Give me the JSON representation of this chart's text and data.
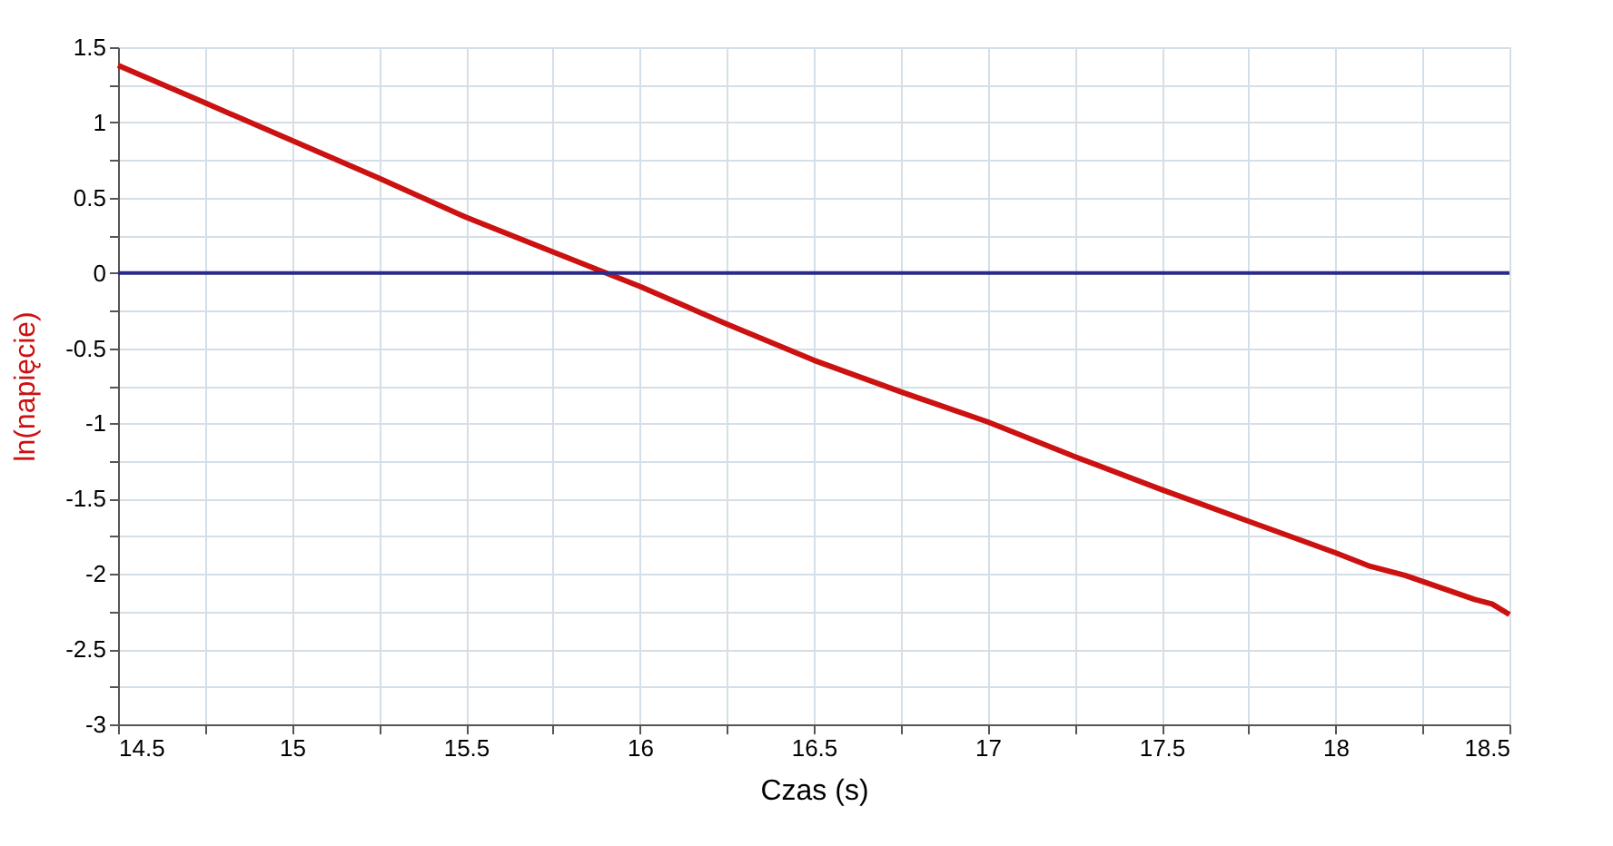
{
  "chart_data": {
    "type": "line",
    "xlabel": "Czas (s)",
    "ylabel": "ln(napięcie)",
    "x": [
      14.5,
      14.75,
      15,
      15.25,
      15.5,
      15.75,
      16,
      16.25,
      16.5,
      16.75,
      17,
      17.25,
      17.5,
      17.75,
      18,
      18.1,
      18.2,
      18.3,
      18.4,
      18.45,
      18.5
    ],
    "series": [
      {
        "color": "#cc1111",
        "values": [
          1.38,
          1.13,
          0.88,
          0.63,
          0.37,
          0.14,
          -0.09,
          -0.34,
          -0.58,
          -0.79,
          -0.99,
          -1.22,
          -1.44,
          -1.65,
          -1.86,
          -1.95,
          -2.01,
          -2.09,
          -2.17,
          -2.2,
          -2.27
        ]
      }
    ],
    "xlim": [
      14.5,
      18.5
    ],
    "ylim": [
      -3,
      1.5
    ],
    "xticks": [
      14.5,
      {
        "value": 14.75,
        "label": null
      },
      15,
      {
        "value": 15.25,
        "label": null
      },
      15.5,
      {
        "value": 15.75,
        "label": null
      },
      16,
      {
        "value": 16.25,
        "label": null
      },
      16.5,
      {
        "value": 16.75,
        "label": null
      },
      17,
      {
        "value": 17.25,
        "label": null
      },
      17.5,
      {
        "value": 17.75,
        "label": null
      },
      18,
      {
        "value": 18.25,
        "label": null
      },
      18.5
    ],
    "yticks": [
      -3,
      {
        "value": -2.75,
        "label": null
      },
      -2.5,
      {
        "value": -2.25,
        "label": null
      },
      -2,
      {
        "value": -1.75,
        "label": null
      },
      -1.5,
      {
        "value": -1.25,
        "label": null
      },
      -1,
      {
        "value": -0.75,
        "label": null
      },
      -0.5,
      {
        "value": -0.25,
        "label": null
      },
      0,
      {
        "value": 0.25,
        "label": null
      },
      0.5,
      {
        "value": 0.75,
        "label": null
      },
      1,
      {
        "value": 1.25,
        "label": null
      },
      1.5
    ],
    "ref_lines": [
      {
        "axis": "y",
        "value": 0,
        "color": "#2a2a8a"
      }
    ],
    "grid": true,
    "marker": "none",
    "line_style": "solid"
  }
}
